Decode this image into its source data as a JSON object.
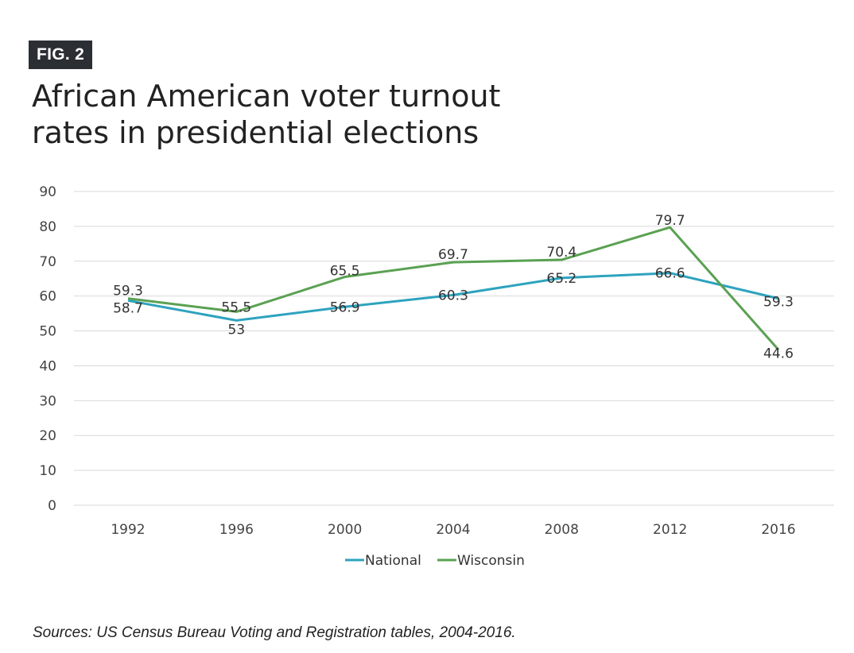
{
  "figure": {
    "badge": "FIG. 2",
    "title_lines": [
      "African American voter turnout",
      "rates in presidential elections"
    ],
    "source": "Sources: US Census Bureau Voting and Registration tables, 2004-2016."
  },
  "colors": {
    "national": "#2ea3be",
    "wisconsin": "#5aa152",
    "grid": "#d9d9d9",
    "badge_bg": "#2b2e33"
  },
  "chart_data": {
    "type": "line",
    "title": "African American voter turnout rates in presidential elections",
    "xlabel": "",
    "ylabel": "",
    "categories": [
      "1992",
      "1996",
      "2000",
      "2004",
      "2008",
      "2012",
      "2016"
    ],
    "ylim": [
      0,
      90
    ],
    "yticks": [
      0,
      10,
      20,
      30,
      40,
      50,
      60,
      70,
      80,
      90
    ],
    "grid": true,
    "legend_position": "bottom",
    "series": [
      {
        "name": "National",
        "color": "#2ea3be",
        "values": [
          58.7,
          53,
          56.9,
          60.3,
          65.2,
          66.6,
          59.3
        ],
        "labels": [
          "58.7",
          "53",
          "56.9",
          "60.3",
          "65.2",
          "66.6",
          "59.3"
        ]
      },
      {
        "name": "Wisconsin",
        "color": "#5aa152",
        "values": [
          59.3,
          55.5,
          65.5,
          69.7,
          70.4,
          79.7,
          44.6
        ],
        "labels": [
          "59.3",
          "55.5",
          "65.5",
          "69.7",
          "70.4",
          "79.7",
          "44.6"
        ]
      }
    ]
  }
}
